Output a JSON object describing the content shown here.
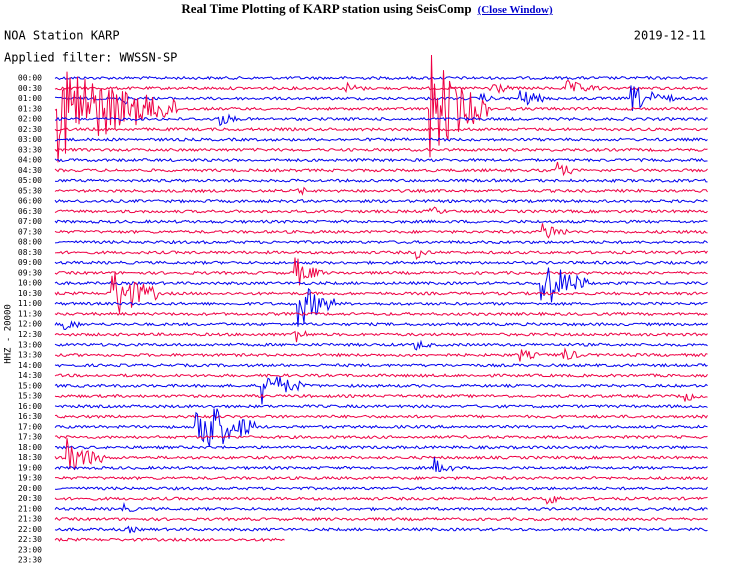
{
  "header": {
    "title": "Real Time Plotting of KARP station using SeisComp",
    "link": "(Close Window)"
  },
  "plot": {
    "station": "NOA Station KARP",
    "date": "2019-12-11",
    "filter": "Applied filter: WWSSN-SP",
    "channel": "HHZ - 20000",
    "time_labels": [
      "00:00",
      "00:30",
      "01:00",
      "01:30",
      "02:00",
      "02:30",
      "03:00",
      "03:30",
      "04:00",
      "04:30",
      "05:00",
      "05:30",
      "06:00",
      "06:30",
      "07:00",
      "07:30",
      "08:00",
      "08:30",
      "09:00",
      "09:30",
      "10:00",
      "10:30",
      "11:00",
      "11:30",
      "12:00",
      "12:30",
      "13:00",
      "13:30",
      "14:00",
      "14:30",
      "15:00",
      "15:30",
      "16:00",
      "16:30",
      "17:00",
      "17:30",
      "18:00",
      "18:30",
      "19:00",
      "19:30",
      "20:00",
      "20:30",
      "21:00",
      "21:30",
      "22:00",
      "22:30",
      "23:00",
      "23:30"
    ]
  }
}
